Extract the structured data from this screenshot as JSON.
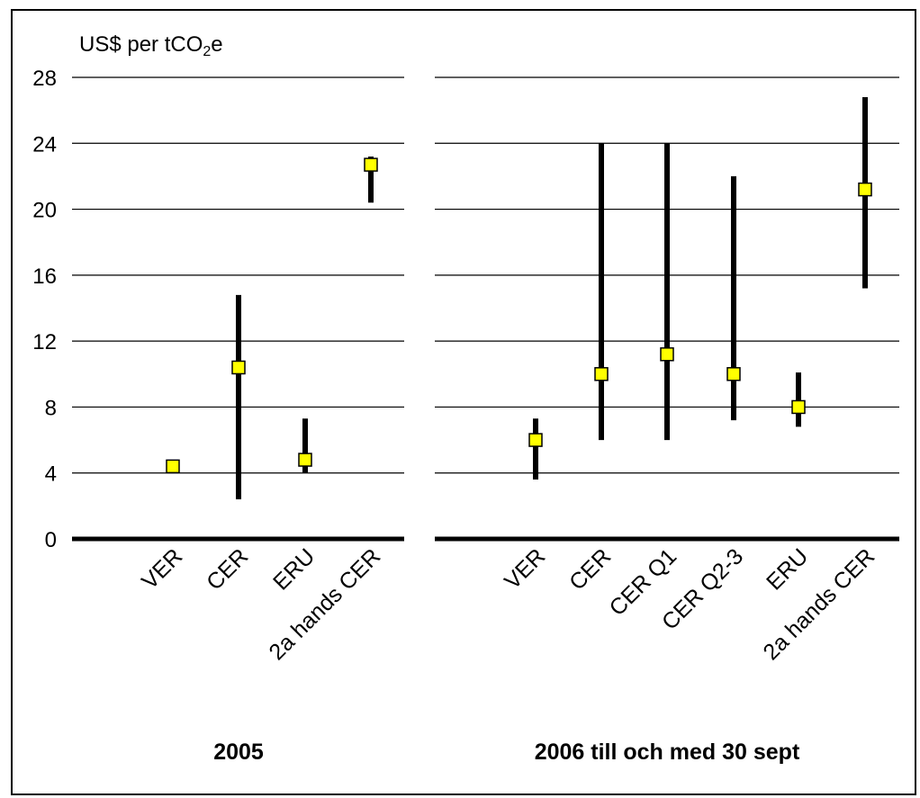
{
  "chart_data": {
    "type": "range",
    "ylabel_prefix": "US$ per tCO",
    "ylabel_sub": "2",
    "ylabel_suffix": "e",
    "ylim": [
      0,
      28
    ],
    "yticks": [
      "0",
      "4",
      "8",
      "12",
      "16",
      "20",
      "24",
      "28"
    ],
    "grid": true,
    "marker_color": "#ffff00",
    "range_color": "#000000",
    "panels": [
      {
        "title": "2005",
        "categories": [
          "VER",
          "CER",
          "ERU",
          "2a hands CER"
        ],
        "points": [
          {
            "low": 4.1,
            "high": 4.7,
            "value": 4.4
          },
          {
            "low": 2.4,
            "high": 14.8,
            "value": 10.4
          },
          {
            "low": 4.0,
            "high": 7.3,
            "value": 4.8
          },
          {
            "low": 20.4,
            "high": 23.2,
            "value": 22.7
          }
        ]
      },
      {
        "title": "2006 till och med 30 sept",
        "categories": [
          "VER",
          "CER",
          "CER Q1",
          "CER Q2-3",
          "ERU",
          "2a hands CER"
        ],
        "points": [
          {
            "low": 3.6,
            "high": 7.3,
            "value": 6.0
          },
          {
            "low": 6.0,
            "high": 24.0,
            "value": 10.0
          },
          {
            "low": 6.0,
            "high": 24.0,
            "value": 11.2
          },
          {
            "low": 7.2,
            "high": 22.0,
            "value": 10.0
          },
          {
            "low": 6.8,
            "high": 10.1,
            "value": 8.0
          },
          {
            "low": 15.2,
            "high": 26.8,
            "value": 21.2
          }
        ]
      }
    ]
  }
}
